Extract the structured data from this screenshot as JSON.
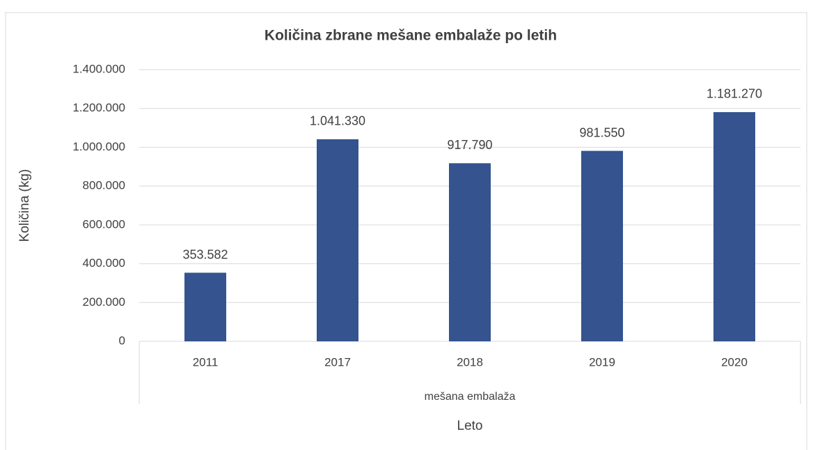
{
  "chart_data": {
    "type": "bar",
    "title": "Količina zbrane mešane embalaže po letih",
    "x_label": "Leto",
    "y_label": "Količina (kg)",
    "category_group": "mešana embalaža",
    "categories": [
      "2011",
      "2017",
      "2018",
      "2019",
      "2020"
    ],
    "values": [
      353582,
      1041330,
      917790,
      981550,
      1181270
    ],
    "value_labels": [
      "353.582",
      "1.041.330",
      "917.790",
      "981.550",
      "1.181.270"
    ],
    "color": "#34538f",
    "ylim": [
      0,
      1400000
    ],
    "yticks": [
      0,
      {
        "value": 200000,
        "label": "200.000"
      },
      {
        "value": 400000,
        "label": "400.000"
      },
      {
        "value": 600000,
        "label": "600.000"
      },
      {
        "value": 800000,
        "label": "800.000"
      },
      {
        "value": 1000000,
        "label": "1.000.000"
      },
      {
        "value": 1200000,
        "label": "1.200.000"
      },
      {
        "value": 1400000,
        "label": "1.400.000"
      }
    ],
    "grid": true
  }
}
